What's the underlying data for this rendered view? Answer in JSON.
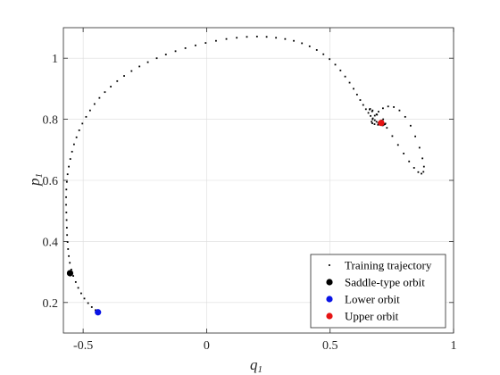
{
  "chart_data": {
    "type": "scatter",
    "xlabel_main": "q",
    "xlabel_sub": "1",
    "ylabel_main": "p",
    "ylabel_sub": "1",
    "xlim": [
      -0.58,
      1.0
    ],
    "ylim": [
      0.1,
      1.1
    ],
    "xticks": [
      -0.5,
      0,
      0.5,
      1
    ],
    "xtick_labels": [
      "-0.5",
      "0",
      "0.5",
      "1"
    ],
    "yticks": [
      0.2,
      0.4,
      0.6,
      0.8,
      1.0
    ],
    "ytick_labels": [
      "0.2",
      "0.4",
      "0.6",
      "0.8",
      "1"
    ],
    "grid": true,
    "legend_position": "bottom-right",
    "series": [
      {
        "name": "Training trajectory",
        "marker": "dot",
        "color": "#000000",
        "x": [
          -0.435,
          -0.45,
          -0.465,
          -0.48,
          -0.495,
          -0.508,
          -0.52,
          -0.53,
          -0.54,
          -0.548,
          -0.554,
          -0.558,
          -0.561,
          -0.563,
          -0.565,
          -0.566,
          -0.567,
          -0.568,
          -0.569,
          -0.569,
          -0.568,
          -0.566,
          -0.563,
          -0.558,
          -0.552,
          -0.545,
          -0.537,
          -0.527,
          -0.516,
          -0.503,
          -0.488,
          -0.472,
          -0.454,
          -0.434,
          -0.412,
          -0.388,
          -0.362,
          -0.334,
          -0.304,
          -0.272,
          -0.238,
          -0.202,
          -0.165,
          -0.126,
          -0.086,
          -0.045,
          -0.004,
          0.038,
          0.08,
          0.122,
          0.163,
          0.204,
          0.243,
          0.281,
          0.318,
          0.353,
          0.386,
          0.417,
          0.446,
          0.473,
          0.498,
          0.521,
          0.542,
          0.561,
          0.579,
          0.595,
          0.609,
          0.622,
          0.634,
          0.645,
          0.655,
          0.664,
          0.673,
          0.681,
          0.688,
          0.695,
          0.702,
          0.707,
          0.712,
          0.716,
          0.719,
          0.722,
          0.724,
          0.715,
          0.69,
          0.67,
          0.66,
          0.662,
          0.672,
          0.688,
          0.708,
          0.73,
          0.752,
          0.775,
          0.798,
          0.82,
          0.84,
          0.857,
          0.87,
          0.878,
          0.88,
          0.874,
          0.862,
          0.845,
          0.826,
          0.804,
          0.781,
          0.758,
          0.735,
          0.714,
          0.696,
          0.681,
          0.672,
          0.668,
          0.671,
          0.68,
          0.694,
          0.706,
          0.713
        ],
        "y": [
          0.168,
          0.175,
          0.185,
          0.198,
          0.213,
          0.23,
          0.248,
          0.267,
          0.287,
          0.308,
          0.33,
          0.352,
          0.375,
          0.398,
          0.421,
          0.445,
          0.47,
          0.495,
          0.52,
          0.545,
          0.57,
          0.595,
          0.62,
          0.645,
          0.67,
          0.694,
          0.718,
          0.741,
          0.764,
          0.786,
          0.808,
          0.829,
          0.85,
          0.87,
          0.889,
          0.907,
          0.925,
          0.942,
          0.958,
          0.973,
          0.987,
          1.0,
          1.012,
          1.023,
          1.033,
          1.042,
          1.05,
          1.057,
          1.063,
          1.067,
          1.07,
          1.071,
          1.07,
          1.067,
          1.063,
          1.057,
          1.049,
          1.039,
          1.027,
          1.013,
          0.997,
          0.979,
          0.96,
          0.94,
          0.92,
          0.9,
          0.881,
          0.863,
          0.847,
          0.833,
          0.821,
          0.811,
          0.803,
          0.797,
          0.792,
          0.788,
          0.785,
          0.783,
          0.782,
          0.782,
          0.783,
          0.784,
          0.786,
          0.8,
          0.815,
          0.826,
          0.832,
          0.834,
          0.829,
          0.816,
          0.796,
          0.772,
          0.745,
          0.716,
          0.688,
          0.662,
          0.641,
          0.627,
          0.622,
          0.628,
          0.645,
          0.672,
          0.707,
          0.744,
          0.779,
          0.808,
          0.829,
          0.84,
          0.842,
          0.836,
          0.825,
          0.812,
          0.8,
          0.792,
          0.787,
          0.784,
          0.782,
          0.781,
          0.78
        ]
      },
      {
        "name": "Saddle-type orbit",
        "marker": "circle",
        "color": "#000000",
        "x": [
          -0.553
        ],
        "y": [
          0.296
        ]
      },
      {
        "name": "Lower orbit",
        "marker": "circle",
        "color": "#0a14e6",
        "x": [
          -0.44
        ],
        "y": [
          0.168
        ]
      },
      {
        "name": "Upper orbit",
        "marker": "circle",
        "color": "#e61414",
        "x": [
          0.707
        ],
        "y": [
          0.788
        ]
      }
    ]
  }
}
